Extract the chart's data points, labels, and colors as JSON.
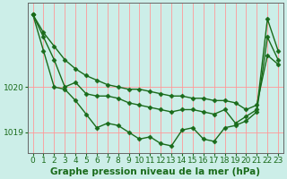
{
  "title": "",
  "xlabel": "Graphe pression niveau de la mer (hPa)",
  "ylabel": "",
  "background_color": "#cceee8",
  "plot_bg_color": "#cceee8",
  "grid_color": "#ff9999",
  "line_color": "#1a6b1a",
  "marker_color": "#1a6b1a",
  "x": [
    0,
    1,
    2,
    3,
    4,
    5,
    6,
    7,
    8,
    9,
    10,
    11,
    12,
    13,
    14,
    15,
    16,
    17,
    18,
    19,
    20,
    21,
    22,
    23
  ],
  "line1": [
    1021.6,
    1021.2,
    1020.9,
    1020.6,
    1020.4,
    1020.25,
    1020.15,
    1020.05,
    1020.0,
    1019.95,
    1019.95,
    1019.9,
    1019.85,
    1019.8,
    1019.8,
    1019.75,
    1019.75,
    1019.7,
    1019.7,
    1019.65,
    1019.5,
    1019.6,
    1020.7,
    1020.5
  ],
  "line2": [
    1021.6,
    1021.1,
    1020.6,
    1020.0,
    1020.1,
    1019.85,
    1019.8,
    1019.8,
    1019.75,
    1019.65,
    1019.6,
    1019.55,
    1019.5,
    1019.45,
    1019.5,
    1019.5,
    1019.45,
    1019.4,
    1019.5,
    1019.2,
    1019.35,
    1019.5,
    1021.5,
    1020.8
  ],
  "line3": [
    1021.6,
    1020.8,
    1020.0,
    1019.95,
    1019.7,
    1019.4,
    1019.1,
    1019.2,
    1019.15,
    1019.0,
    1018.85,
    1018.9,
    1018.75,
    1018.7,
    1019.05,
    1019.1,
    1018.85,
    1018.8,
    1019.1,
    1019.15,
    1019.25,
    1019.45,
    1021.1,
    1020.6
  ],
  "ylim": [
    1018.55,
    1021.85
  ],
  "yticks": [
    1019.0,
    1020.0
  ],
  "xlim": [
    -0.5,
    23.5
  ],
  "xticks": [
    0,
    1,
    2,
    3,
    4,
    5,
    6,
    7,
    8,
    9,
    10,
    11,
    12,
    13,
    14,
    15,
    16,
    17,
    18,
    19,
    20,
    21,
    22,
    23
  ],
  "fontsize_xlabel": 7.5,
  "fontsize_ticks": 6.5,
  "linewidth": 1.0,
  "markersize": 2.5
}
